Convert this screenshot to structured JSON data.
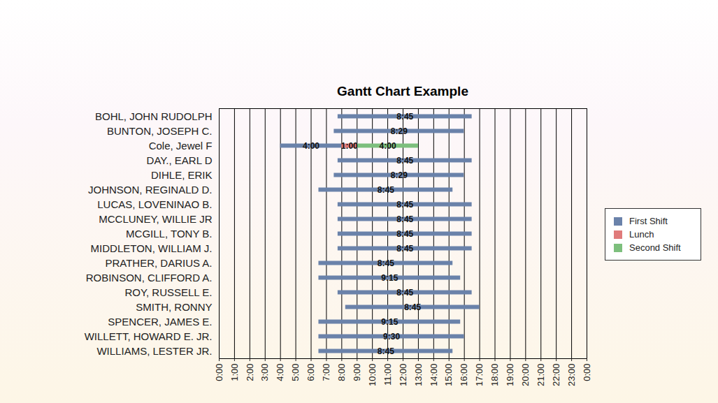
{
  "chart_data": {
    "type": "gantt",
    "title": "Gantt Chart Example",
    "orientation": "horizontal",
    "categories": [
      "BOHL, JOHN RUDOLPH",
      "BUNTON, JOSEPH C.",
      "Cole, Jewel F",
      "DAY., EARL D",
      "DIHLE, ERIK",
      "JOHNSON, REGINALD D.",
      "LUCAS, LOVENINAO B.",
      "MCCLUNEY, WILLIE JR",
      "MCGILL, TONY B.",
      "MIDDLETON, WILLIAM J.",
      "PRATHER, DARIUS A.",
      "ROBINSON, CLIFFORD A.",
      "ROY, RUSSELL E.",
      "SMITH, RONNY",
      "SPENCER, JAMES E.",
      "WILLETT, HOWARD E. JR.",
      "WILLIAMS, LESTER JR."
    ],
    "series": [
      {
        "name": "First Shift",
        "color": "#6a82aa",
        "start": [
          7.75,
          7.5,
          4,
          7.75,
          7.5,
          6.5,
          7.75,
          7.75,
          7.75,
          7.75,
          6.5,
          6.5,
          7.75,
          8.25,
          6.5,
          6.5,
          6.5
        ],
        "values": [
          8.75,
          8.4833,
          4,
          8.75,
          8.4833,
          8.75,
          8.75,
          8.75,
          8.75,
          8.75,
          8.75,
          9.25,
          8.75,
          8.75,
          9.25,
          9.5,
          8.75
        ],
        "value_labels": [
          "8:45",
          "8:29",
          "4:00",
          "8:45",
          "8:29",
          "8:45",
          "8:45",
          "8:45",
          "8:45",
          "8:45",
          "8:45",
          "9:15",
          "8:45",
          "8:45",
          "9:15",
          "9:30",
          "8:45"
        ]
      },
      {
        "name": "Lunch",
        "color": "#e07b7b",
        "start": [
          null,
          null,
          8,
          null,
          null,
          null,
          null,
          null,
          null,
          null,
          null,
          null,
          null,
          null,
          null,
          null,
          null
        ],
        "values": [
          null,
          null,
          1,
          null,
          null,
          null,
          null,
          null,
          null,
          null,
          null,
          null,
          null,
          null,
          null,
          null,
          null
        ],
        "value_labels": [
          null,
          null,
          "1:00",
          null,
          null,
          null,
          null,
          null,
          null,
          null,
          null,
          null,
          null,
          null,
          null,
          null,
          null
        ]
      },
      {
        "name": "Second Shift",
        "color": "#7dbf7d",
        "start": [
          null,
          null,
          9,
          null,
          null,
          null,
          null,
          null,
          null,
          null,
          null,
          null,
          null,
          null,
          null,
          null,
          null
        ],
        "values": [
          null,
          null,
          4,
          null,
          null,
          null,
          null,
          null,
          null,
          null,
          null,
          null,
          null,
          null,
          null,
          null,
          null
        ],
        "value_labels": [
          null,
          null,
          "4:00",
          null,
          null,
          null,
          null,
          null,
          null,
          null,
          null,
          null,
          null,
          null,
          null,
          null,
          null
        ]
      }
    ],
    "xlim": [
      0,
      24
    ],
    "xticks": [
      {
        "value": 0,
        "label": "0:00"
      },
      {
        "value": 1,
        "label": "1:00"
      },
      {
        "value": 2,
        "label": "2:00"
      },
      {
        "value": 3,
        "label": "3:00"
      },
      {
        "value": 4,
        "label": "4:00"
      },
      {
        "value": 5,
        "label": "5:00"
      },
      {
        "value": 6,
        "label": "6:00"
      },
      {
        "value": 7,
        "label": "7:00"
      },
      {
        "value": 8,
        "label": "8:00"
      },
      {
        "value": 9,
        "label": "9:00"
      },
      {
        "value": 10,
        "label": "10:00"
      },
      {
        "value": 11,
        "label": "11:00"
      },
      {
        "value": 12,
        "label": "12:00"
      },
      {
        "value": 13,
        "label": "13:00"
      },
      {
        "value": 14,
        "label": "14:00"
      },
      {
        "value": 15,
        "label": "15:00"
      },
      {
        "value": 16,
        "label": "16:00"
      },
      {
        "value": 17,
        "label": "17:00"
      },
      {
        "value": 18,
        "label": "18:00"
      },
      {
        "value": 19,
        "label": "19:00"
      },
      {
        "value": 20,
        "label": "20:00"
      },
      {
        "value": 21,
        "label": "21:00"
      },
      {
        "value": 22,
        "label": "22:00"
      },
      {
        "value": 23,
        "label": "23:00"
      },
      {
        "value": 24,
        "label": "0:00"
      }
    ],
    "grid": true,
    "data_labels": true,
    "legend": "right"
  }
}
